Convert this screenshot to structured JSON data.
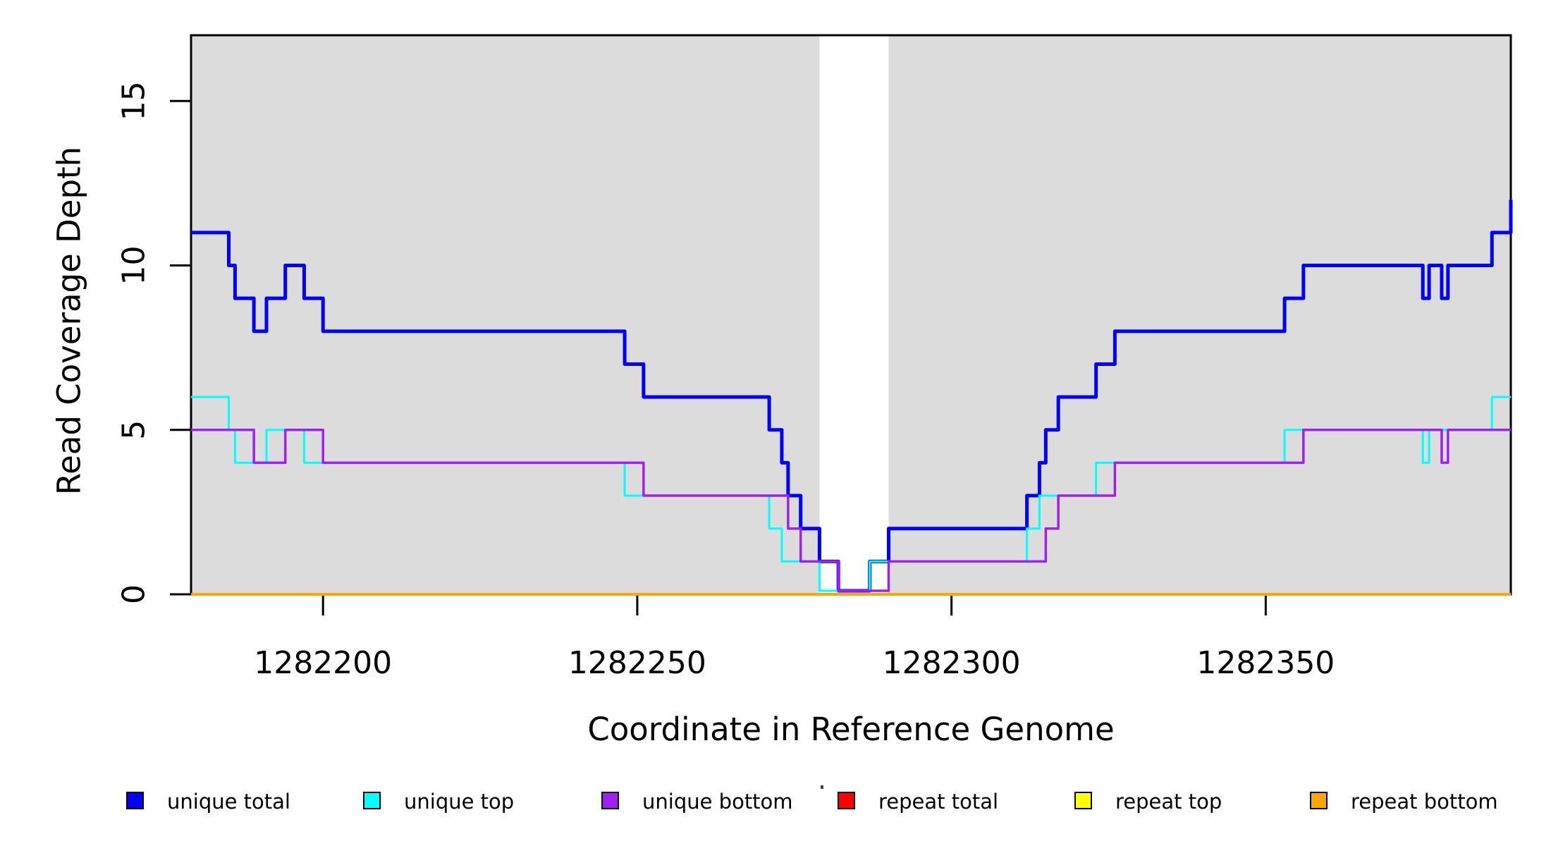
{
  "chart_data": {
    "type": "line",
    "line_style": "step-after",
    "title": "",
    "xlabel": "Coordinate in Reference Genome",
    "ylabel": "Read Coverage Depth",
    "xlim": [
      1282179,
      1282389
    ],
    "ylim": [
      0,
      17
    ],
    "xticks": [
      1282200,
      1282250,
      1282300,
      1282350
    ],
    "yticks": [
      0,
      5,
      10,
      15
    ],
    "grid": false,
    "plot_background": "#ffffff",
    "shaded_region_color": "#dcdcdc",
    "shaded_regions": [
      [
        1282179,
        1282279
      ],
      [
        1282290,
        1282389
      ]
    ],
    "unshaded_gap": [
      1282279,
      1282290
    ],
    "legend_position": "bottom",
    "legend": [
      {
        "label": "unique total",
        "color": "#0000ff"
      },
      {
        "label": "unique top",
        "color": "#00ffff"
      },
      {
        "label": "unique bottom",
        "color": "#a020f0"
      },
      {
        "label": "repeat total",
        "color": "#ff0000"
      },
      {
        "label": "repeat top",
        "color": "#ffff00"
      },
      {
        "label": "repeat bottom",
        "color": "#ffa500"
      }
    ],
    "series": [
      {
        "name": "unique total",
        "color": "#0000ff",
        "line_width": 5,
        "points": [
          [
            1282179,
            11
          ],
          [
            1282185,
            10
          ],
          [
            1282186,
            9
          ],
          [
            1282189,
            8
          ],
          [
            1282191,
            9
          ],
          [
            1282194,
            10
          ],
          [
            1282197,
            9
          ],
          [
            1282200,
            8
          ],
          [
            1282248,
            7
          ],
          [
            1282251,
            6
          ],
          [
            1282271,
            5
          ],
          [
            1282273,
            4
          ],
          [
            1282274,
            3
          ],
          [
            1282276,
            2
          ],
          [
            1282279,
            1
          ],
          [
            1282282,
            0
          ],
          [
            1282287,
            1
          ],
          [
            1282290,
            2
          ],
          [
            1282312,
            3
          ],
          [
            1282314,
            4
          ],
          [
            1282315,
            5
          ],
          [
            1282317,
            6
          ],
          [
            1282323,
            7
          ],
          [
            1282326,
            8
          ],
          [
            1282353,
            9
          ],
          [
            1282356,
            10
          ],
          [
            1282375,
            9
          ],
          [
            1282376,
            10
          ],
          [
            1282378,
            9
          ],
          [
            1282379,
            10
          ],
          [
            1282386,
            11
          ],
          [
            1282389,
            12
          ]
        ]
      },
      {
        "name": "unique top",
        "color": "#00ffff",
        "line_width": 3,
        "points": [
          [
            1282179,
            6
          ],
          [
            1282185,
            5
          ],
          [
            1282186,
            4
          ],
          [
            1282191,
            5
          ],
          [
            1282197,
            4
          ],
          [
            1282248,
            3
          ],
          [
            1282271,
            2
          ],
          [
            1282273,
            1
          ],
          [
            1282279,
            0
          ],
          [
            1282287,
            1
          ],
          [
            1282312,
            2
          ],
          [
            1282314,
            3
          ],
          [
            1282323,
            4
          ],
          [
            1282353,
            5
          ],
          [
            1282375,
            4
          ],
          [
            1282376,
            5
          ],
          [
            1282386,
            6
          ],
          [
            1282389,
            6
          ]
        ]
      },
      {
        "name": "unique bottom",
        "color": "#a020f0",
        "line_width": 3.5,
        "points": [
          [
            1282179,
            5
          ],
          [
            1282189,
            4
          ],
          [
            1282194,
            5
          ],
          [
            1282200,
            4
          ],
          [
            1282251,
            3
          ],
          [
            1282274,
            2
          ],
          [
            1282276,
            1
          ],
          [
            1282282,
            0
          ],
          [
            1282290,
            1
          ],
          [
            1282315,
            2
          ],
          [
            1282317,
            3
          ],
          [
            1282326,
            4
          ],
          [
            1282356,
            5
          ],
          [
            1282378,
            4
          ],
          [
            1282379,
            5
          ],
          [
            1282389,
            5
          ]
        ]
      },
      {
        "name": "repeat total",
        "color": "#ff0000",
        "line_width": 3,
        "points": [
          [
            1282179,
            0
          ],
          [
            1282389,
            0
          ]
        ]
      },
      {
        "name": "repeat top",
        "color": "#ffff00",
        "line_width": 3,
        "points": [
          [
            1282179,
            0
          ],
          [
            1282389,
            0
          ]
        ]
      },
      {
        "name": "repeat bottom",
        "color": "#ffa500",
        "line_width": 4,
        "points": [
          [
            1282179,
            0
          ],
          [
            1282389,
            0
          ]
        ]
      }
    ]
  }
}
